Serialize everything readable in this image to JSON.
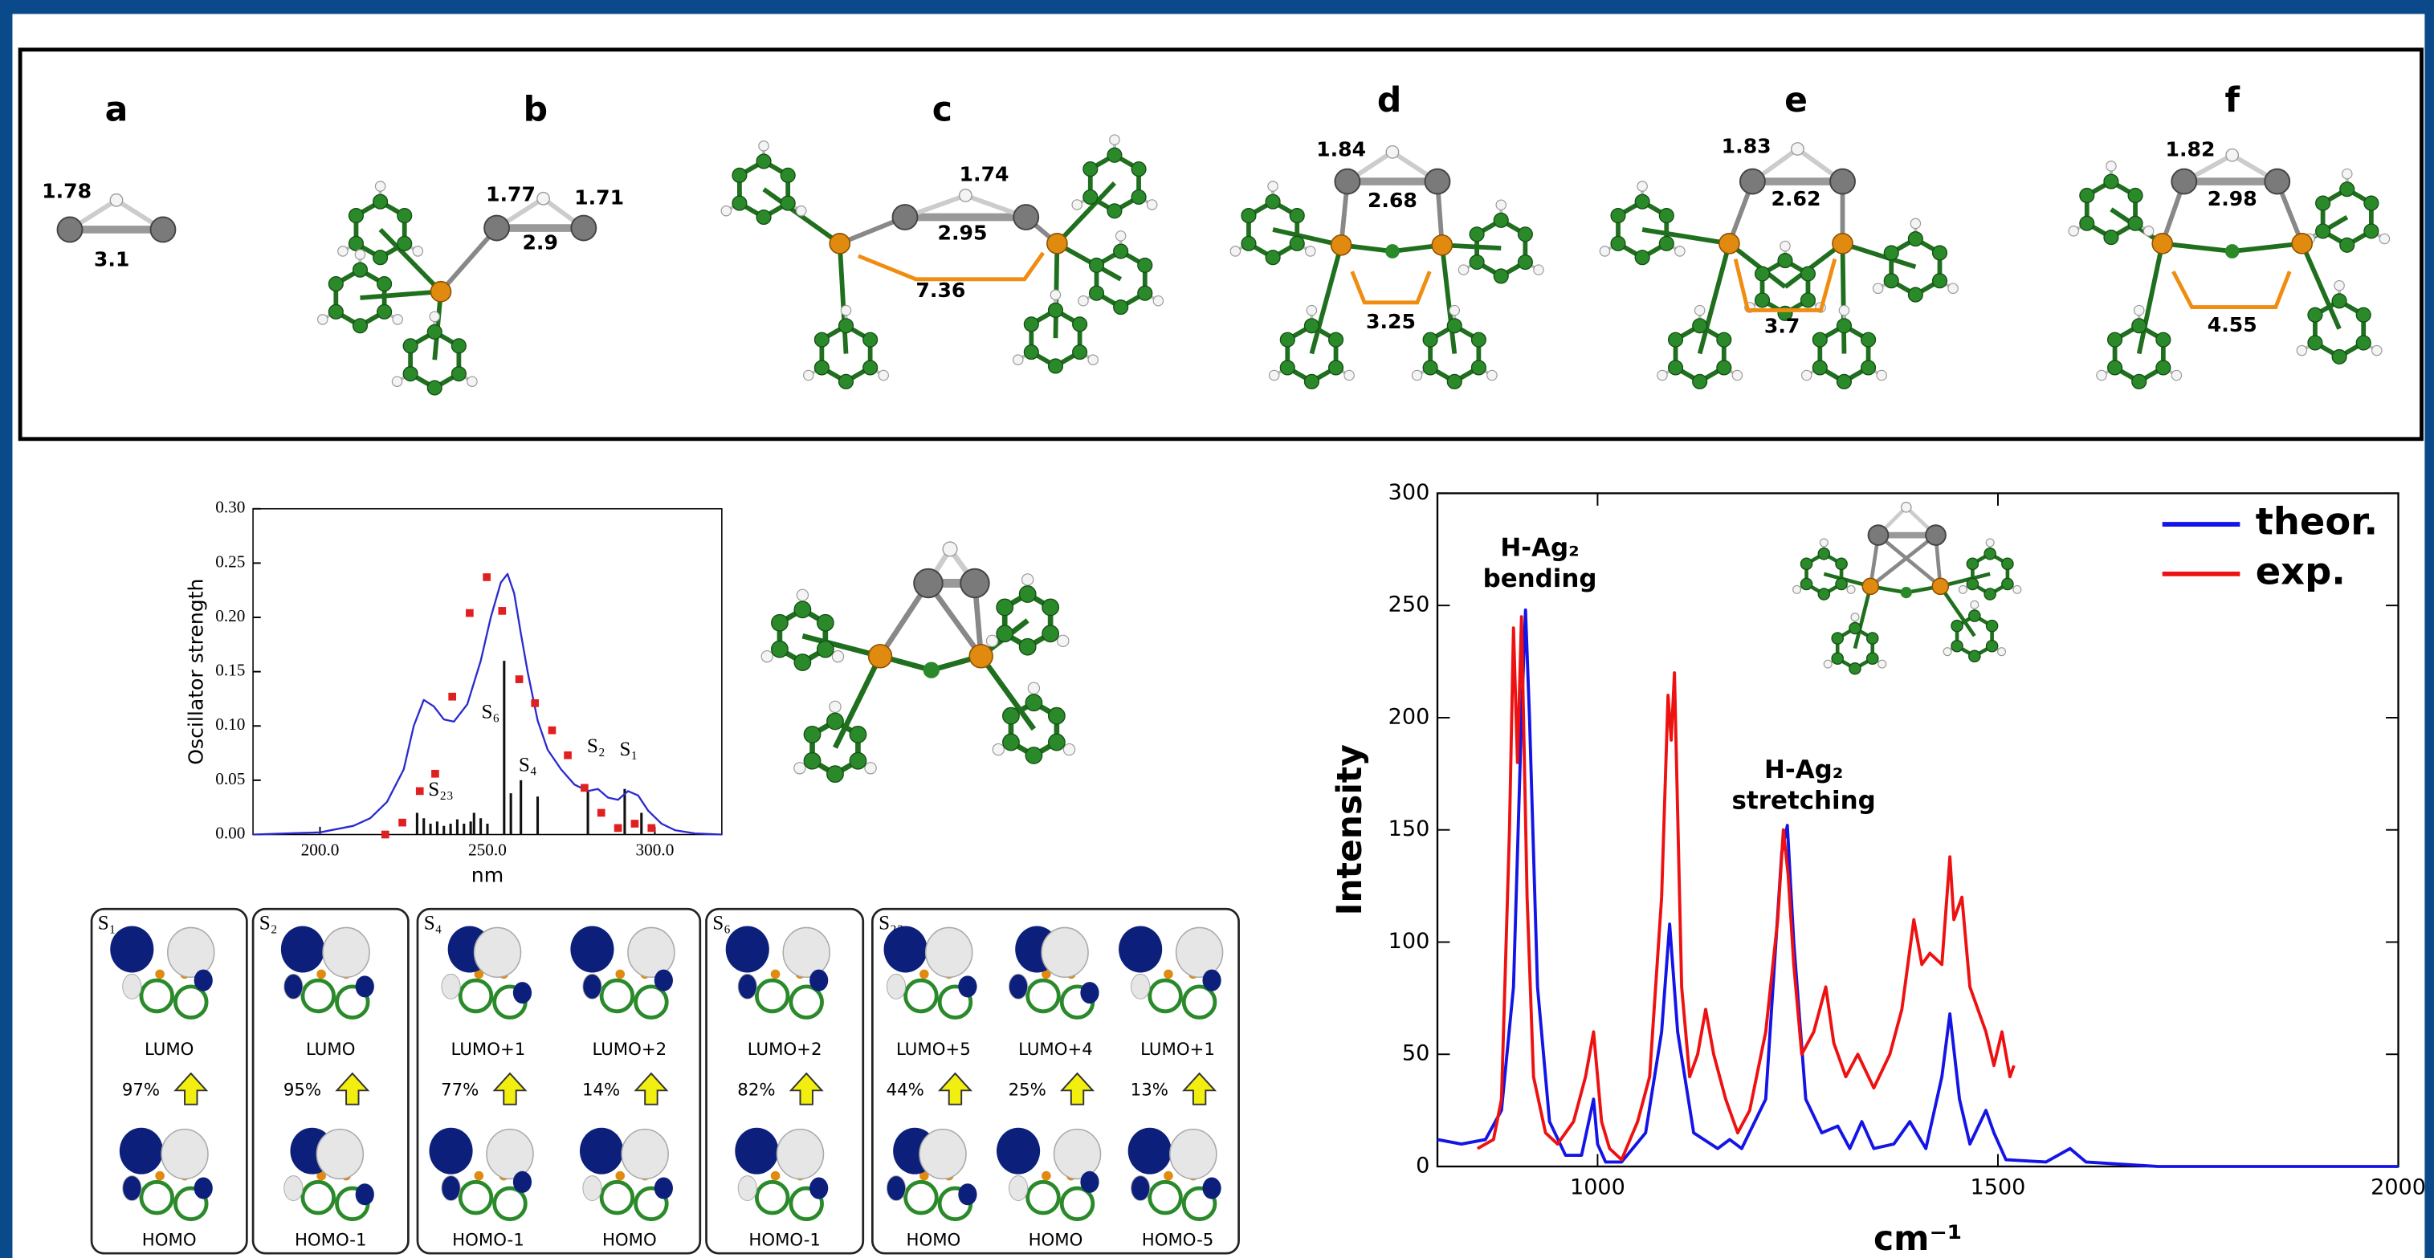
{
  "panels": [
    {
      "label": "a",
      "distances": [
        1.78,
        3.1
      ]
    },
    {
      "label": "b",
      "distances": [
        1.77,
        1.71,
        2.9
      ]
    },
    {
      "label": "c",
      "distances": [
        1.74,
        2.95,
        7.36
      ]
    },
    {
      "label": "d",
      "distances": [
        1.84,
        2.68,
        3.25
      ]
    },
    {
      "label": "e",
      "distances": [
        1.83,
        2.62,
        3.7
      ]
    },
    {
      "label": "f",
      "distances": [
        1.82,
        2.98,
        4.55
      ]
    }
  ],
  "chart_data": [
    {
      "type": "line",
      "x_label": "nm",
      "y_label": "Oscillator strength",
      "xlim": [
        180,
        320
      ],
      "ylim": [
        0,
        0.3
      ],
      "xticks": [
        {
          "value": 200,
          "label": "200.0"
        },
        {
          "value": 250,
          "label": "250.0"
        },
        {
          "value": 300,
          "label": "300.0"
        }
      ],
      "yticks": [
        {
          "value": 0,
          "label": "0.00"
        },
        {
          "value": 0.05,
          "label": "0.05"
        },
        {
          "value": 0.1,
          "label": "0.10"
        },
        {
          "value": 0.15,
          "label": "0.15"
        },
        {
          "value": 0.2,
          "label": "0.20"
        },
        {
          "value": 0.25,
          "label": "0.25"
        },
        {
          "value": 0.3,
          "label": "0.30"
        }
      ],
      "curve": {
        "color": "#2a2ad0",
        "x": [
          180,
          200,
          210,
          215,
          220,
          225,
          228,
          231,
          234,
          237,
          240,
          244,
          248,
          251,
          254,
          256,
          258,
          260,
          262,
          265,
          268,
          272,
          276,
          280,
          283,
          286,
          289,
          292,
          295,
          298,
          302,
          306,
          312,
          320
        ],
        "values": [
          0,
          0.002,
          0.008,
          0.015,
          0.03,
          0.06,
          0.1,
          0.124,
          0.118,
          0.106,
          0.104,
          0.12,
          0.16,
          0.2,
          0.232,
          0.24,
          0.222,
          0.185,
          0.15,
          0.105,
          0.078,
          0.06,
          0.046,
          0.04,
          0.042,
          0.034,
          0.032,
          0.04,
          0.036,
          0.022,
          0.01,
          0.004,
          0.001,
          0
        ]
      },
      "points": {
        "color": "#e02020",
        "x": [
          219.5,
          224.6,
          229.8,
          234.4,
          239.5,
          244.7,
          249.8,
          254.4,
          259.5,
          264.2,
          269.3,
          274,
          279,
          284,
          289,
          294,
          299
        ],
        "values": [
          0,
          0.011,
          0.04,
          0.056,
          0.127,
          0.204,
          0.237,
          0.206,
          0.143,
          0.121,
          0.096,
          0.073,
          0.043,
          0.02,
          0.006,
          0.01,
          0.006
        ]
      },
      "sticks": {
        "color": "#111111",
        "x": [
          229,
          231,
          233,
          235,
          237,
          239,
          241,
          243,
          245,
          246,
          248,
          250,
          255,
          257,
          260,
          265,
          280,
          291,
          296
        ],
        "values": [
          0.02,
          0.015,
          0.01,
          0.012,
          0.008,
          0.01,
          0.014,
          0.01,
          0.012,
          0.02,
          0.015,
          0.01,
          0.16,
          0.038,
          0.05,
          0.035,
          0.04,
          0.042,
          0.02
        ]
      },
      "annotations": [
        "S₂₃",
        "S₆",
        "S₄",
        "S₂",
        "S₁"
      ]
    },
    {
      "type": "line",
      "x_label": "cm⁻¹",
      "y_label": "Intensity",
      "xlim": [
        800,
        2000
      ],
      "ylim": [
        0,
        300
      ],
      "xticks": [
        1000,
        1500,
        2000
      ],
      "yticks": [
        0,
        50,
        100,
        150,
        200,
        250,
        300
      ],
      "legend": "upper right",
      "series": [
        {
          "name": "theor.",
          "color": "#1414e6",
          "x": [
            800,
            830,
            860,
            880,
            895,
            905,
            910,
            915,
            925,
            940,
            960,
            980,
            995,
            1000,
            1010,
            1030,
            1060,
            1080,
            1090,
            1100,
            1120,
            1150,
            1165,
            1180,
            1210,
            1230,
            1237,
            1245,
            1260,
            1280,
            1300,
            1315,
            1330,
            1345,
            1370,
            1390,
            1410,
            1430,
            1440,
            1452,
            1465,
            1485,
            1495,
            1510,
            1560,
            1590,
            1610,
            1700,
            2000
          ],
          "values": [
            12,
            10,
            12,
            25,
            80,
            200,
            248,
            200,
            80,
            20,
            5,
            5,
            30,
            10,
            2,
            2,
            15,
            60,
            108,
            60,
            15,
            8,
            12,
            8,
            30,
            140,
            152,
            100,
            30,
            15,
            18,
            8,
            20,
            8,
            10,
            20,
            8,
            40,
            68,
            30,
            10,
            25,
            15,
            3,
            2,
            8,
            2,
            0,
            0
          ]
        },
        {
          "name": "exp.",
          "color": "#ee1111",
          "x": [
            850,
            870,
            880,
            890,
            895,
            900,
            905,
            912,
            920,
            935,
            950,
            970,
            985,
            995,
            1005,
            1015,
            1030,
            1050,
            1065,
            1080,
            1088,
            1092,
            1096,
            1105,
            1115,
            1125,
            1135,
            1145,
            1160,
            1175,
            1190,
            1210,
            1225,
            1232,
            1238,
            1245,
            1255,
            1270,
            1285,
            1295,
            1310,
            1325,
            1345,
            1365,
            1380,
            1395,
            1405,
            1415,
            1430,
            1440,
            1445,
            1455,
            1465,
            1475,
            1485,
            1495,
            1505,
            1515,
            1520
          ],
          "values": [
            8,
            12,
            30,
            150,
            240,
            180,
            245,
            120,
            40,
            15,
            10,
            20,
            40,
            60,
            20,
            8,
            3,
            20,
            40,
            120,
            210,
            190,
            220,
            80,
            40,
            50,
            70,
            50,
            30,
            15,
            25,
            60,
            110,
            150,
            130,
            90,
            50,
            60,
            80,
            55,
            40,
            50,
            35,
            50,
            70,
            110,
            90,
            95,
            90,
            138,
            110,
            120,
            80,
            70,
            60,
            45,
            60,
            40,
            45
          ]
        }
      ],
      "annotations": [
        [
          "H-Ag₂",
          "bending"
        ],
        [
          "H-Ag₂",
          "stretching"
        ]
      ]
    }
  ],
  "orbitals": [
    {
      "state": "S₁",
      "transitions": [
        {
          "upper": "LUMO",
          "percent": "97%",
          "lower": "HOMO"
        }
      ]
    },
    {
      "state": "S₂",
      "transitions": [
        {
          "upper": "LUMO",
          "percent": "95%",
          "lower": "HOMO-1"
        }
      ]
    },
    {
      "state": "S₄",
      "transitions": [
        {
          "upper": "LUMO+1",
          "percent": "77%",
          "lower": "HOMO-1"
        },
        {
          "upper": "LUMO+2",
          "percent": "14%",
          "lower": "HOMO"
        }
      ]
    },
    {
      "state": "S₆",
      "transitions": [
        {
          "upper": "LUMO+2",
          "percent": "82%",
          "lower": "HOMO-1"
        }
      ]
    },
    {
      "state": "S₂₃",
      "transitions": [
        {
          "upper": "LUMO+5",
          "percent": "44%",
          "lower": "HOMO"
        },
        {
          "upper": "LUMO+4",
          "percent": "25%",
          "lower": "HOMO"
        },
        {
          "upper": "LUMO+1",
          "percent": "13%",
          "lower": "HOMO-5"
        }
      ]
    }
  ]
}
